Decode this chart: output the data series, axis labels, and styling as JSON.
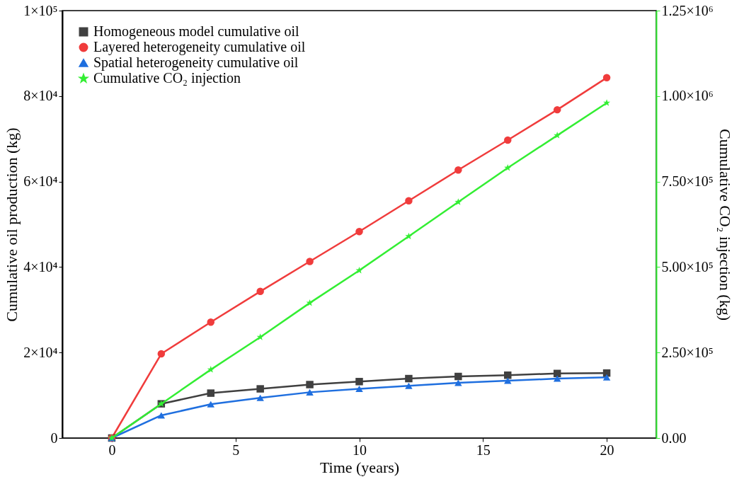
{
  "chart_data": {
    "type": "line",
    "xlabel": "Time (years)",
    "ylabel": "Cumulative oil production (kg)",
    "y2label": "Cumulative CO₂ injection (kg)",
    "x": [
      0,
      2,
      4,
      6,
      8,
      10,
      12,
      14,
      16,
      18,
      20
    ],
    "xlim": [
      -2,
      22
    ],
    "xticks": [
      0,
      5,
      10,
      15,
      20
    ],
    "ylim": [
      0,
      100000
    ],
    "yticks": [
      0,
      {
        "value": 20000,
        "label": "2×10⁴"
      },
      {
        "value": 40000,
        "label": "4×10⁴"
      },
      {
        "value": 60000,
        "label": "6×10⁴"
      },
      {
        "value": 80000,
        "label": "8×10⁴"
      },
      {
        "value": 100000,
        "label": "1×10⁵"
      }
    ],
    "y2lim": [
      0,
      1250000
    ],
    "y2ticks": [
      {
        "value": 0,
        "label": "0.00"
      },
      {
        "value": 250000,
        "label": "2.50×10⁵"
      },
      {
        "value": 500000,
        "label": "5.00×10⁵"
      },
      {
        "value": 750000,
        "label": "7.50×10⁵"
      },
      {
        "value": 1000000,
        "label": "1.00×10⁶"
      },
      {
        "value": 1250000,
        "label": "1.25×10⁶"
      }
    ],
    "grid": false,
    "legend": "top left",
    "line_style": "solid",
    "series": [
      {
        "name": "Homogeneous model cumulative oil",
        "color": "#404040",
        "marker": "square",
        "values": [
          0,
          8000,
          10500,
          11500,
          12500,
          13200,
          13900,
          14400,
          14700,
          15100,
          15200
        ]
      },
      {
        "name": "Layered heterogeneity cumulative oil",
        "color": "#f03c3c",
        "marker": "circle",
        "values": [
          0,
          19700,
          27100,
          34300,
          41300,
          48300,
          55500,
          62700,
          69700,
          76800,
          84300
        ]
      },
      {
        "name": "Spatial heterogeneity cumulative oil",
        "color": "#1f6fdf",
        "marker": "triangle",
        "values": [
          0,
          5300,
          7900,
          9400,
          10700,
          11500,
          12200,
          12900,
          13400,
          13900,
          14200
        ]
      },
      {
        "name": "Cumulative CO₂ injection",
        "color": "#33ee33",
        "marker": "star",
        "axis": "y2",
        "values": [
          0,
          100000,
          200000,
          295000,
          395000,
          490000,
          590000,
          690000,
          790000,
          885000,
          980000
        ]
      }
    ]
  }
}
